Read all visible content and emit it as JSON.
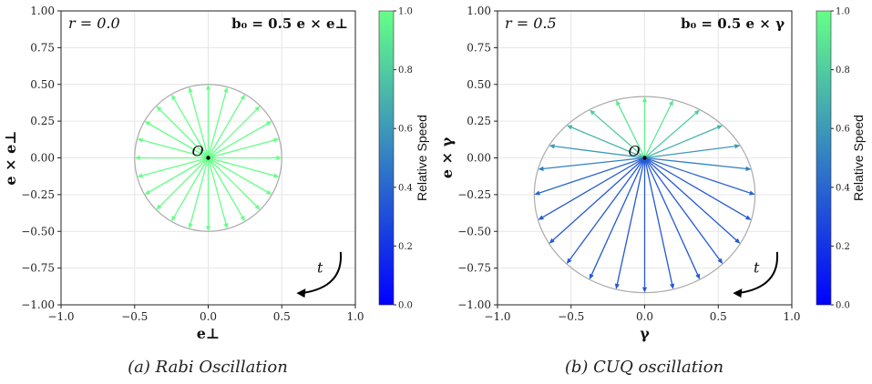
{
  "colors": {
    "speed_low": "#0000ff",
    "speed_high": "#66ff88",
    "circle": "#aaaaaa",
    "grid": "#e6e6e6"
  },
  "chart_data": [
    {
      "type": "vector-field",
      "panel_caption": "(a) Rabi Oscillation",
      "r_label": "r = 0.0",
      "b0_label": "b₀ = 0.5 e × e⊥",
      "xlabel": "e⊥",
      "ylabel": "e × e⊥",
      "xlim": [
        -1.0,
        1.0
      ],
      "ylim": [
        -1.0,
        1.0
      ],
      "xticks": [
        "−1.0",
        "−0.5",
        "0.0",
        "0.5",
        "1.0"
      ],
      "yticks": [
        "1.00",
        "0.75",
        "0.50",
        "0.25",
        "0.00",
        "−0.25",
        "−0.50",
        "−0.75",
        "−1.00"
      ],
      "grid": true,
      "origin_label": "O",
      "time_label": "t",
      "circle": {
        "center": [
          0.0,
          0.0
        ],
        "rx": 0.5,
        "ry": 0.5
      },
      "vectors": {
        "count": 24,
        "origin": [
          0.0,
          0.0
        ],
        "relative_speed": [
          1.0,
          1.0,
          1.0,
          1.0,
          1.0,
          1.0,
          1.0,
          1.0,
          1.0,
          1.0,
          1.0,
          1.0,
          1.0,
          1.0,
          1.0,
          1.0,
          1.0,
          1.0,
          1.0,
          1.0,
          1.0,
          1.0,
          1.0,
          1.0
        ]
      },
      "colorbar": {
        "label": "Relative Speed",
        "ticks": [
          "0.0",
          "0.2",
          "0.4",
          "0.6",
          "0.8",
          "1.0"
        ],
        "range": [
          0.0,
          1.0
        ]
      }
    },
    {
      "type": "vector-field",
      "panel_caption": "(b) CUQ oscillation",
      "r_label": "r = 0.5",
      "b0_label": "b₀ = 0.5 e × γ",
      "xlabel": "γ",
      "ylabel": "e × γ",
      "xlim": [
        -1.0,
        1.0
      ],
      "ylim": [
        -1.0,
        1.0
      ],
      "xticks": [
        "−1.0",
        "−0.5",
        "0.0",
        "0.5",
        "1.0"
      ],
      "yticks": [
        "1.00",
        "0.75",
        "0.50",
        "0.25",
        "0.00",
        "−0.25",
        "−0.50",
        "−0.75",
        "−1.00"
      ],
      "grid": true,
      "origin_label": "O",
      "time_label": "t",
      "circle": {
        "center": [
          0.0,
          -0.25
        ],
        "rx": 0.75,
        "ry": 0.667
      },
      "vectors": {
        "count": 24,
        "origin": [
          0.0,
          0.0
        ],
        "relative_speed": [
          0.95,
          0.9,
          0.8,
          0.7,
          0.6,
          0.5,
          0.4,
          0.35,
          0.35,
          0.35,
          0.35,
          0.35,
          0.35,
          0.35,
          0.35,
          0.35,
          0.35,
          0.35,
          0.4,
          0.5,
          0.6,
          0.7,
          0.8,
          0.9
        ]
      },
      "colorbar": {
        "label": "Relative Speed",
        "ticks": [
          "0.0",
          "0.2",
          "0.4",
          "0.6",
          "0.8",
          "1.0"
        ],
        "range": [
          0.0,
          1.0
        ]
      }
    }
  ]
}
